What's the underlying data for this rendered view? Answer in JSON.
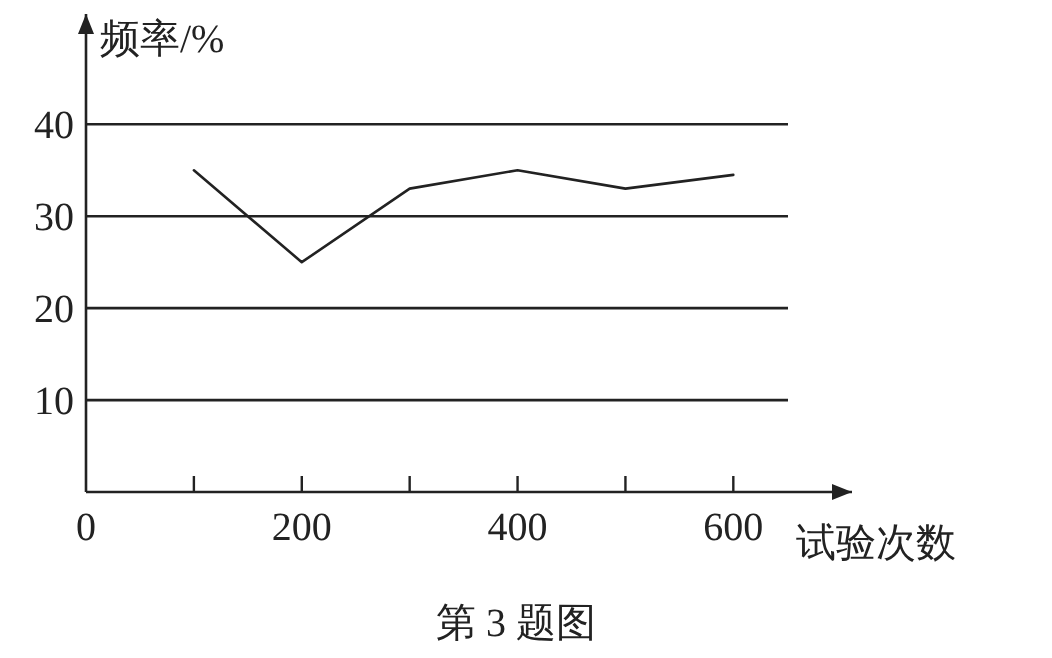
{
  "chart_data": {
    "type": "line",
    "title": "第 3 题图",
    "xlabel": "试验次数",
    "ylabel": "频率/%",
    "x": [
      100,
      200,
      300,
      400,
      500,
      600
    ],
    "series": [
      {
        "color": "#222222",
        "values": [
          35,
          25,
          33,
          35,
          33,
          34.5
        ]
      }
    ],
    "xlim": [
      0,
      710
    ],
    "ylim": [
      0,
      52
    ],
    "xticks": [
      0,
      {
        "value": 100,
        "label": null
      },
      200,
      {
        "value": 300,
        "label": null
      },
      400,
      {
        "value": 500,
        "label": null
      },
      600
    ],
    "yticks": [
      10,
      20,
      30,
      40
    ],
    "grid": "y",
    "marker": "none",
    "line_style": "solid"
  }
}
